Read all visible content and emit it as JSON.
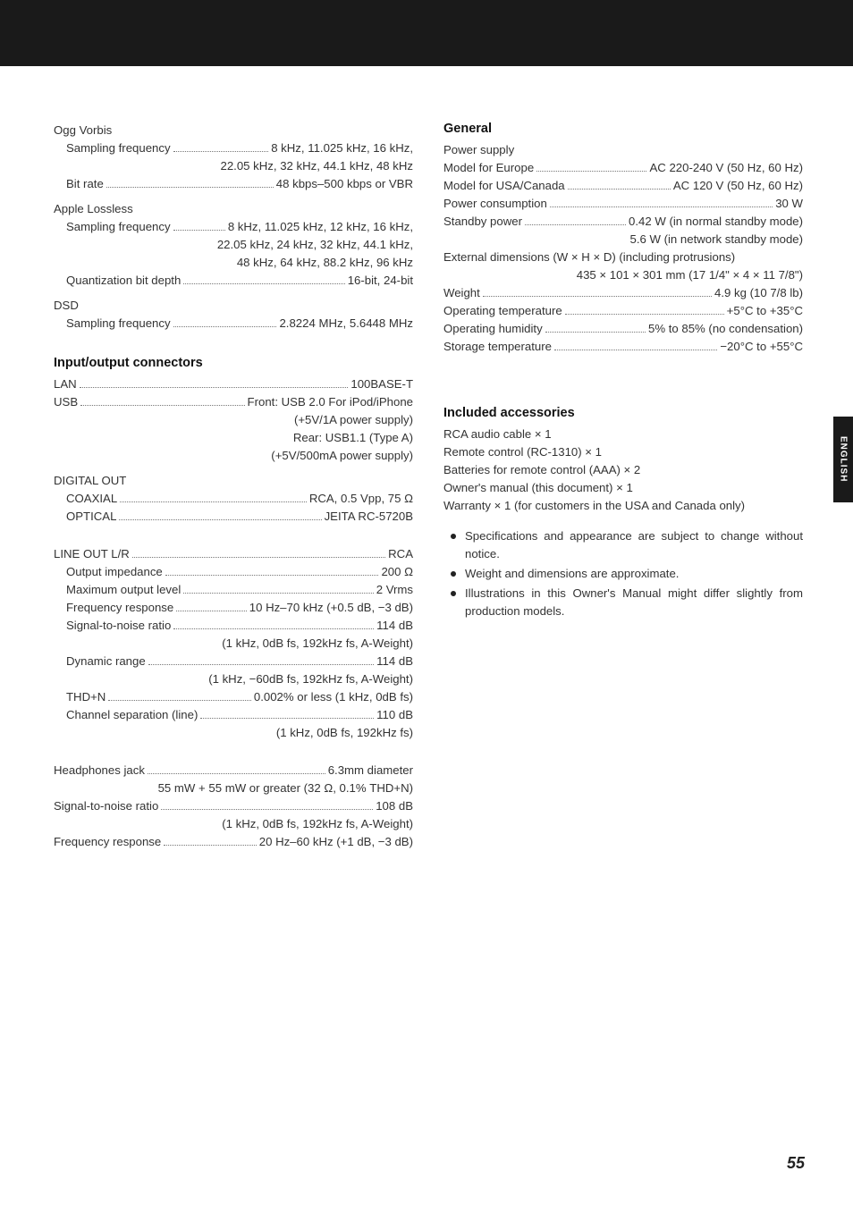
{
  "sideTab": "ENGLISH",
  "pageNumber": "55",
  "left": {
    "ogg": {
      "head": "Ogg Vorbis",
      "rows": [
        {
          "label": "Sampling frequency",
          "value": "8 kHz, 11.025 kHz, 16 kHz,"
        },
        {
          "cont": "22.05 kHz, 32 kHz, 44.1 kHz, 48 kHz"
        },
        {
          "label": "Bit rate",
          "value": "48 kbps–500 kbps or VBR"
        }
      ]
    },
    "alac": {
      "head": "Apple Lossless",
      "rows": [
        {
          "label": "Sampling frequency",
          "value": "8 kHz, 11.025 kHz, 12 kHz, 16 kHz,"
        },
        {
          "cont": "22.05 kHz, 24 kHz, 32 kHz, 44.1 kHz,"
        },
        {
          "cont": "48 kHz, 64 kHz, 88.2 kHz, 96 kHz"
        },
        {
          "label": "Quantization bit depth",
          "value": "16-bit, 24-bit"
        }
      ]
    },
    "dsd": {
      "head": "DSD",
      "rows": [
        {
          "label": "Sampling frequency",
          "value": "2.8224 MHz, 5.6448 MHz"
        }
      ]
    },
    "io": {
      "head": "Input/output connectors",
      "rows": [
        {
          "label": "LAN",
          "value": "100BASE-T"
        },
        {
          "label": "USB",
          "value": "Front: USB 2.0 For iPod/iPhone"
        },
        {
          "cont": "(+5V/1A power supply)"
        },
        {
          "cont": "Rear: USB1.1 (Type A)"
        },
        {
          "cont": "(+5V/500mA power supply)"
        }
      ],
      "digitalHead": "DIGITAL OUT",
      "digital": [
        {
          "label": "COAXIAL",
          "value": "RCA, 0.5 Vpp, 75 Ω"
        },
        {
          "label": "OPTICAL",
          "value": "JEITA RC-5720B"
        }
      ],
      "lineHead": {
        "label": "LINE OUT L/R",
        "value": "RCA"
      },
      "line": [
        {
          "label": "Output impedance",
          "value": "200 Ω"
        },
        {
          "label": "Maximum output level",
          "value": "2 Vrms"
        },
        {
          "label": "Frequency response",
          "value": "10 Hz–70 kHz (+0.5 dB, −3 dB)"
        },
        {
          "label": "Signal-to-noise ratio",
          "value": "114 dB"
        },
        {
          "cont": "(1 kHz, 0dB fs, 192kHz fs, A-Weight)"
        },
        {
          "label": "Dynamic range",
          "value": "114 dB"
        },
        {
          "cont": "(1 kHz, −60dB fs, 192kHz fs, A-Weight)"
        },
        {
          "label": "THD+N",
          "value": "0.002% or less (1 kHz, 0dB fs)"
        },
        {
          "label": "Channel separation (line)",
          "value": "110 dB"
        },
        {
          "cont": "(1 kHz, 0dB fs, 192kHz fs)"
        }
      ],
      "hp": [
        {
          "label": "Headphones jack",
          "value": "6.3mm diameter"
        },
        {
          "cont": "55 mW + 55 mW or greater (32 Ω, 0.1% THD+N)"
        },
        {
          "label": "Signal-to-noise ratio",
          "value": "108 dB"
        },
        {
          "cont": "(1 kHz, 0dB fs, 192kHz fs, A-Weight)"
        },
        {
          "label": "Frequency response",
          "value": "20 Hz–60 kHz (+1 dB, −3 dB)"
        }
      ]
    }
  },
  "right": {
    "general": {
      "head": "General",
      "psHead": "Power supply",
      "rows": [
        {
          "label": "Model for Europe",
          "value": "AC 220-240 V (50 Hz, 60 Hz)"
        },
        {
          "label": "Model for USA/Canada",
          "value": "AC 120 V (50 Hz, 60 Hz)"
        },
        {
          "label": "Power consumption",
          "value": "30 W"
        },
        {
          "label": "Standby power",
          "value": "0.42 W (in normal standby mode)"
        },
        {
          "cont": "5.6 W (in network standby mode)"
        }
      ],
      "dimLine": "External dimensions (W × H × D) (including protrusions)",
      "dimValue": "435 × 101 × 301 mm (17 1/4\" × 4 × 11 7/8\")",
      "rows2": [
        {
          "label": "Weight",
          "value": "4.9 kg (10 7/8 lb)"
        },
        {
          "label": "Operating temperature",
          "value": "+5°C to +35°C"
        },
        {
          "label": "Operating humidity",
          "value": "5% to 85% (no condensation)"
        },
        {
          "label": "Storage temperature",
          "value": "−20°C to +55°C"
        }
      ]
    },
    "accessories": {
      "head": "Included accessories",
      "items": [
        "RCA audio cable × 1",
        "Remote control (RC-1310) × 1",
        "Batteries for remote control (AAA) × 2",
        "Owner's manual (this document) × 1",
        "Warranty × 1 (for customers in the USA and Canada only)"
      ],
      "bullets": [
        "Specifications and appearance are subject to change without notice.",
        "Weight and dimensions are approximate.",
        "Illustrations in this Owner's Manual might differ slightly from production models."
      ]
    }
  }
}
